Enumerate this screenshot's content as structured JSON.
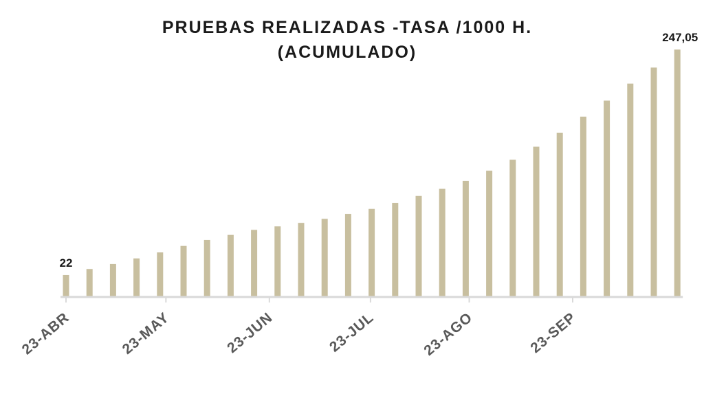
{
  "chart_data": {
    "type": "bar",
    "title": [
      "PRUEBAS REALIZADAS -TASA /1000 H.",
      "(ACUMULADO)"
    ],
    "xlabel": "",
    "ylabel": "",
    "tick_labels": [
      "23-ABR",
      "23-MAY",
      "23-JUN",
      "23-JUL",
      "23-AGO",
      "23-SEP"
    ],
    "tick_positions": [
      0,
      4.25,
      8.65,
      12.95,
      17.15,
      21.55
    ],
    "values": [
      22,
      28,
      33,
      38.5,
      44.5,
      51,
      57,
      62,
      67,
      70.5,
      74,
      78,
      83,
      88,
      94,
      101,
      108,
      116,
      126,
      137,
      150,
      164,
      180,
      196,
      213,
      229,
      247.05
    ],
    "data_labels": [
      {
        "index": 0,
        "text": "22"
      },
      {
        "index": 26,
        "text": "247,05"
      }
    ],
    "ylim": [
      0,
      247.05
    ],
    "grid": false,
    "legend": "none",
    "colors": {
      "bar": "#c8bf9f",
      "axis": "#d9d9d9",
      "title": "#1a1a1a",
      "tick_label": "#595959"
    }
  }
}
